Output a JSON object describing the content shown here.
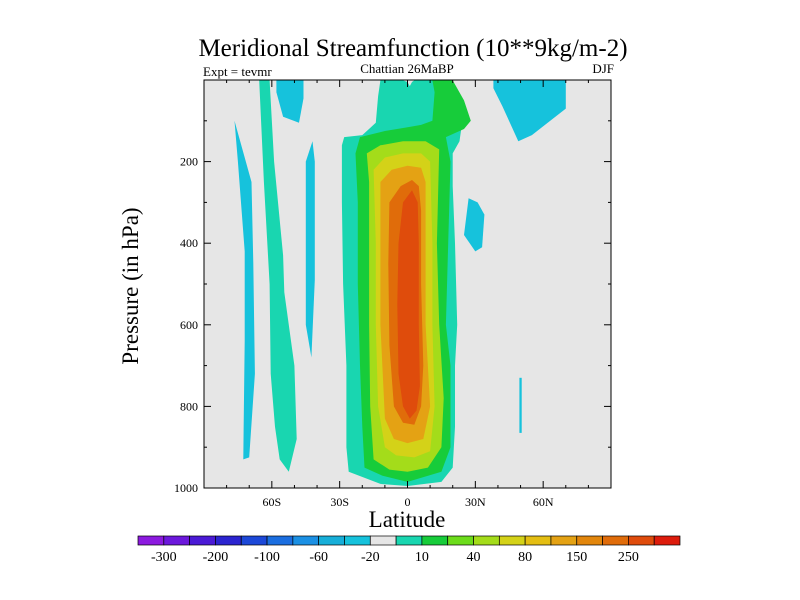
{
  "chart_data": {
    "type": "contour",
    "title": "Meridional Streamfunction (10**9kg/m-2)",
    "subtitle_left": "Expt = tevmr",
    "subtitle_center": "Chattian  26MaBP",
    "subtitle_right": "DJF",
    "xlabel": "Latitude",
    "ylabel": "Pressure (in hPa)",
    "xlim": [
      -90,
      90
    ],
    "ylim": [
      1000,
      0
    ],
    "x_ticks": [
      {
        "value": -60,
        "label": "60S"
      },
      {
        "value": -30,
        "label": "30S"
      },
      {
        "value": 0,
        "label": "0"
      },
      {
        "value": 30,
        "label": "30N"
      },
      {
        "value": 60,
        "label": "60N"
      }
    ],
    "y_ticks": [
      {
        "value": 200,
        "label": "200"
      },
      {
        "value": 400,
        "label": "400"
      },
      {
        "value": 600,
        "label": "600"
      },
      {
        "value": 800,
        "label": "800"
      },
      {
        "value": 1000,
        "label": "1000"
      }
    ],
    "background_color": "#e6e6e6",
    "colorbar": {
      "colors": [
        "#8c1adf",
        "#6c18dc",
        "#4b1ad6",
        "#2b24d0",
        "#1c48d8",
        "#1b6ee0",
        "#1b90e4",
        "#17aed8",
        "#16c2dc",
        "#e6e6e6",
        "#19d6b0",
        "#17cc3a",
        "#6cdc1b",
        "#a4dc1a",
        "#d4d218",
        "#e4be12",
        "#e4a214",
        "#e2860c",
        "#e06c0a",
        "#df4c0c",
        "#dd1c0c"
      ],
      "labels": [
        {
          "after_box": 1,
          "text": "-300"
        },
        {
          "after_box": 3,
          "text": "-200"
        },
        {
          "after_box": 5,
          "text": "-100"
        },
        {
          "after_box": 7,
          "text": "-60"
        },
        {
          "after_box": 9,
          "text": "-20"
        },
        {
          "after_box": 11,
          "text": "10"
        },
        {
          "after_box": 13,
          "text": "40"
        },
        {
          "after_box": 15,
          "text": "80"
        },
        {
          "after_box": 17,
          "text": "150"
        },
        {
          "after_box": 19,
          "text": "250"
        }
      ]
    },
    "regions": [
      {
        "name": "nh-upper-negative",
        "color": "#16c2dc",
        "points": [
          [
            38,
            1
          ],
          [
            70,
            1
          ],
          [
            70,
            70
          ],
          [
            55,
            135
          ],
          [
            49,
            150
          ],
          [
            42,
            65
          ],
          [
            38,
            20
          ]
        ]
      },
      {
        "name": "nh-midlat-negative",
        "color": "#16c2dc",
        "points": [
          [
            27,
            290
          ],
          [
            31,
            300
          ],
          [
            34,
            330
          ],
          [
            33,
            410
          ],
          [
            30,
            420
          ],
          [
            25,
            380
          ]
        ]
      },
      {
        "name": "nh-sliver-negative",
        "color": "#16c2dc",
        "points": [
          [
            49.5,
            730
          ],
          [
            50.5,
            730
          ],
          [
            50.5,
            865
          ],
          [
            49.5,
            865
          ]
        ]
      },
      {
        "name": "sh-polar-negative",
        "color": "#16c2dc",
        "points": [
          [
            -76.5,
            100
          ],
          [
            -75,
            200
          ],
          [
            -72,
            420
          ],
          [
            -72,
            640
          ],
          [
            -72.5,
            860
          ],
          [
            -72.6,
            930
          ],
          [
            -70,
            925
          ],
          [
            -67.5,
            720
          ],
          [
            -68.2,
            450
          ],
          [
            -69,
            250
          ]
        ]
      },
      {
        "name": "sh-upper-negative",
        "color": "#16c2dc",
        "points": [
          [
            -58,
            1
          ],
          [
            -46,
            1
          ],
          [
            -46,
            45
          ],
          [
            -48,
            105
          ],
          [
            -55,
            90
          ],
          [
            -58,
            30
          ]
        ]
      },
      {
        "name": "sh-midlat-negative",
        "color": "#16c2dc",
        "points": [
          [
            -42,
            150
          ],
          [
            -45,
            200
          ],
          [
            -45,
            450
          ],
          [
            -45,
            600
          ],
          [
            -42.5,
            680
          ],
          [
            -41,
            490
          ],
          [
            -41,
            200
          ]
        ]
      },
      {
        "name": "sh-positive-band",
        "color": "#19d6b0",
        "points": [
          [
            -65.6,
            1
          ],
          [
            -61,
            1
          ],
          [
            -59,
            200
          ],
          [
            -55,
            430
          ],
          [
            -54.5,
            520
          ],
          [
            -50,
            700
          ],
          [
            -49,
            880
          ],
          [
            -52.5,
            960
          ],
          [
            -56.5,
            930
          ],
          [
            -58.6,
            850
          ],
          [
            -60.5,
            720
          ],
          [
            -61,
            500
          ],
          [
            -63.5,
            250
          ]
        ]
      },
      {
        "name": "hadley-level-1",
        "color": "#19d6b0",
        "points": [
          [
            -29,
            160
          ],
          [
            -28,
            140
          ],
          [
            -20,
            135
          ],
          [
            -14,
            105
          ],
          [
            -13,
            40
          ],
          [
            -12,
            1
          ],
          [
            -2,
            1
          ],
          [
            0,
            5
          ],
          [
            1,
            15
          ],
          [
            2,
            5
          ],
          [
            3,
            1
          ],
          [
            13,
            1
          ],
          [
            15,
            25
          ],
          [
            21,
            60
          ],
          [
            24,
            85
          ],
          [
            24,
            110
          ],
          [
            23,
            150
          ],
          [
            20,
            180
          ],
          [
            20,
            260
          ],
          [
            21,
            400
          ],
          [
            22,
            600
          ],
          [
            21,
            700
          ],
          [
            21,
            850
          ],
          [
            20,
            950
          ],
          [
            15,
            985
          ],
          [
            0,
            995
          ],
          [
            -12,
            990
          ],
          [
            -26,
            960
          ],
          [
            -27,
            900
          ],
          [
            -27,
            700
          ],
          [
            -28.5,
            500
          ],
          [
            -29,
            300
          ]
        ]
      },
      {
        "name": "hadley-level-2",
        "color": "#17cc3a",
        "points": [
          [
            -21,
            140
          ],
          [
            -10,
            125
          ],
          [
            1,
            115
          ],
          [
            6,
            110
          ],
          [
            11,
            100
          ],
          [
            12,
            30
          ],
          [
            11,
            1
          ],
          [
            20,
            1
          ],
          [
            25,
            50
          ],
          [
            28,
            100
          ],
          [
            25,
            120
          ],
          [
            17,
            140
          ],
          [
            19,
            200
          ],
          [
            18,
            400
          ],
          [
            17,
            600
          ],
          [
            19,
            700
          ],
          [
            19,
            900
          ],
          [
            15,
            960
          ],
          [
            0,
            985
          ],
          [
            -11,
            970
          ],
          [
            -19,
            950
          ],
          [
            -20,
            850
          ],
          [
            -21,
            700
          ],
          [
            -22,
            500
          ],
          [
            -22,
            300
          ],
          [
            -23,
            180
          ]
        ]
      },
      {
        "name": "hadley-level-3",
        "color": "#a4dc1a",
        "points": [
          [
            -18,
            180
          ],
          [
            -12,
            160
          ],
          [
            -2,
            150
          ],
          [
            8,
            150
          ],
          [
            14,
            170
          ],
          [
            13,
            400
          ],
          [
            14,
            600
          ],
          [
            16,
            780
          ],
          [
            15,
            900
          ],
          [
            9,
            950
          ],
          [
            0,
            960
          ],
          [
            -8,
            955
          ],
          [
            -15,
            930
          ],
          [
            -16.5,
            800
          ],
          [
            -17,
            600
          ],
          [
            -17,
            400
          ],
          [
            -17,
            250
          ]
        ]
      },
      {
        "name": "hadley-level-4",
        "color": "#d4d218",
        "points": [
          [
            -15,
            220
          ],
          [
            -10,
            190
          ],
          [
            -2,
            180
          ],
          [
            6,
            180
          ],
          [
            10,
            200
          ],
          [
            11,
            400
          ],
          [
            11,
            600
          ],
          [
            12,
            800
          ],
          [
            10,
            910
          ],
          [
            3,
            925
          ],
          [
            -5,
            920
          ],
          [
            -10,
            900
          ],
          [
            -13,
            800
          ],
          [
            -14,
            600
          ],
          [
            -14,
            400
          ]
        ]
      },
      {
        "name": "hadley-level-5",
        "color": "#e4a214",
        "points": [
          [
            -12,
            250
          ],
          [
            -7,
            220
          ],
          [
            0,
            210
          ],
          [
            6,
            215
          ],
          [
            8,
            250
          ],
          [
            8,
            400
          ],
          [
            8,
            600
          ],
          [
            10,
            800
          ],
          [
            7,
            880
          ],
          [
            0,
            890
          ],
          [
            -6,
            880
          ],
          [
            -10,
            830
          ],
          [
            -12,
            600
          ],
          [
            -12,
            400
          ]
        ]
      },
      {
        "name": "hadley-level-6",
        "color": "#e06c0a",
        "points": [
          [
            -8,
            300
          ],
          [
            -3,
            260
          ],
          [
            2,
            245
          ],
          [
            5,
            260
          ],
          [
            6,
            320
          ],
          [
            6,
            500
          ],
          [
            7,
            700
          ],
          [
            6,
            800
          ],
          [
            3,
            845
          ],
          [
            -2,
            840
          ],
          [
            -6,
            800
          ],
          [
            -8,
            650
          ],
          [
            -8.5,
            450
          ]
        ]
      },
      {
        "name": "hadley-level-7",
        "color": "#df4c0c",
        "points": [
          [
            -4,
            400
          ],
          [
            -2,
            300
          ],
          [
            2,
            270
          ],
          [
            4.5,
            300
          ],
          [
            5,
            400
          ],
          [
            5,
            600
          ],
          [
            5.5,
            750
          ],
          [
            4,
            810
          ],
          [
            1,
            830
          ],
          [
            -2,
            800
          ],
          [
            -4,
            720
          ],
          [
            -4.5,
            550
          ]
        ]
      }
    ]
  }
}
